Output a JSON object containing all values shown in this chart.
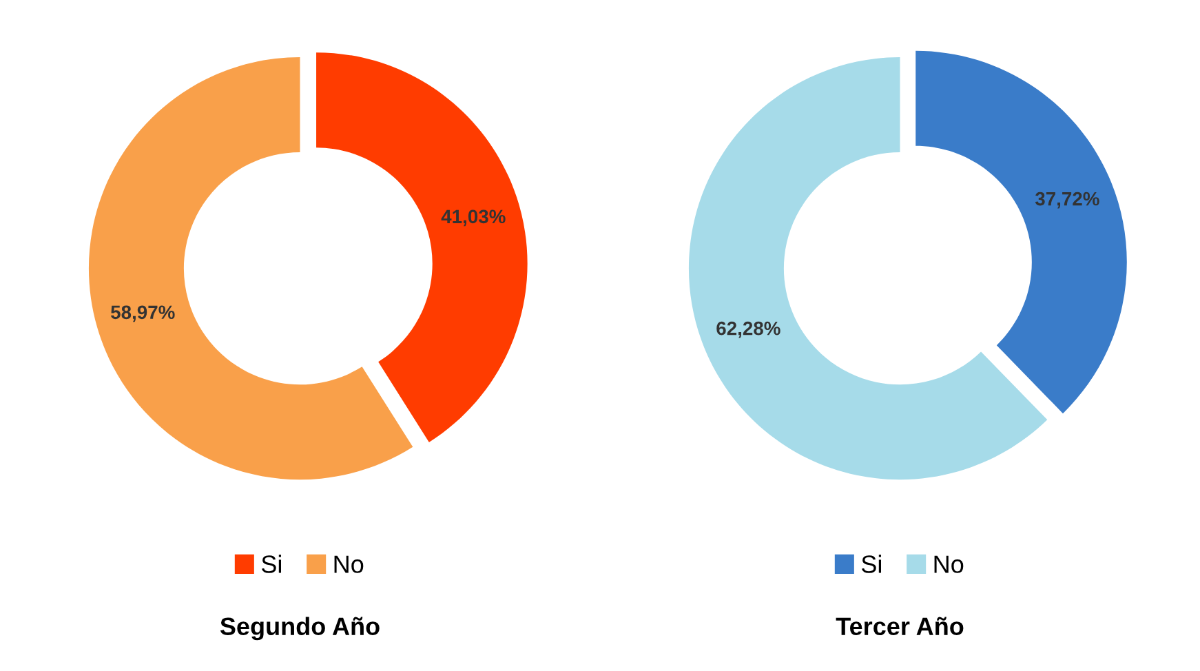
{
  "chart_data": [
    {
      "type": "donut",
      "title": "Segundo Año",
      "categories": [
        "Si",
        "No"
      ],
      "values": [
        41.03,
        58.97
      ],
      "colors": [
        "#ff3c00",
        "#f9a04a"
      ],
      "value_labels": [
        "41,03%",
        "58,97%"
      ],
      "legend": "bottom"
    },
    {
      "type": "donut",
      "title": "Tercer Año",
      "categories": [
        "Si",
        "No"
      ],
      "values": [
        37.72,
        62.28
      ],
      "colors": [
        "#3a7cc9",
        "#a6dbe9"
      ],
      "value_labels": [
        "37,72%",
        "62,28%"
      ],
      "legend": "bottom"
    }
  ]
}
